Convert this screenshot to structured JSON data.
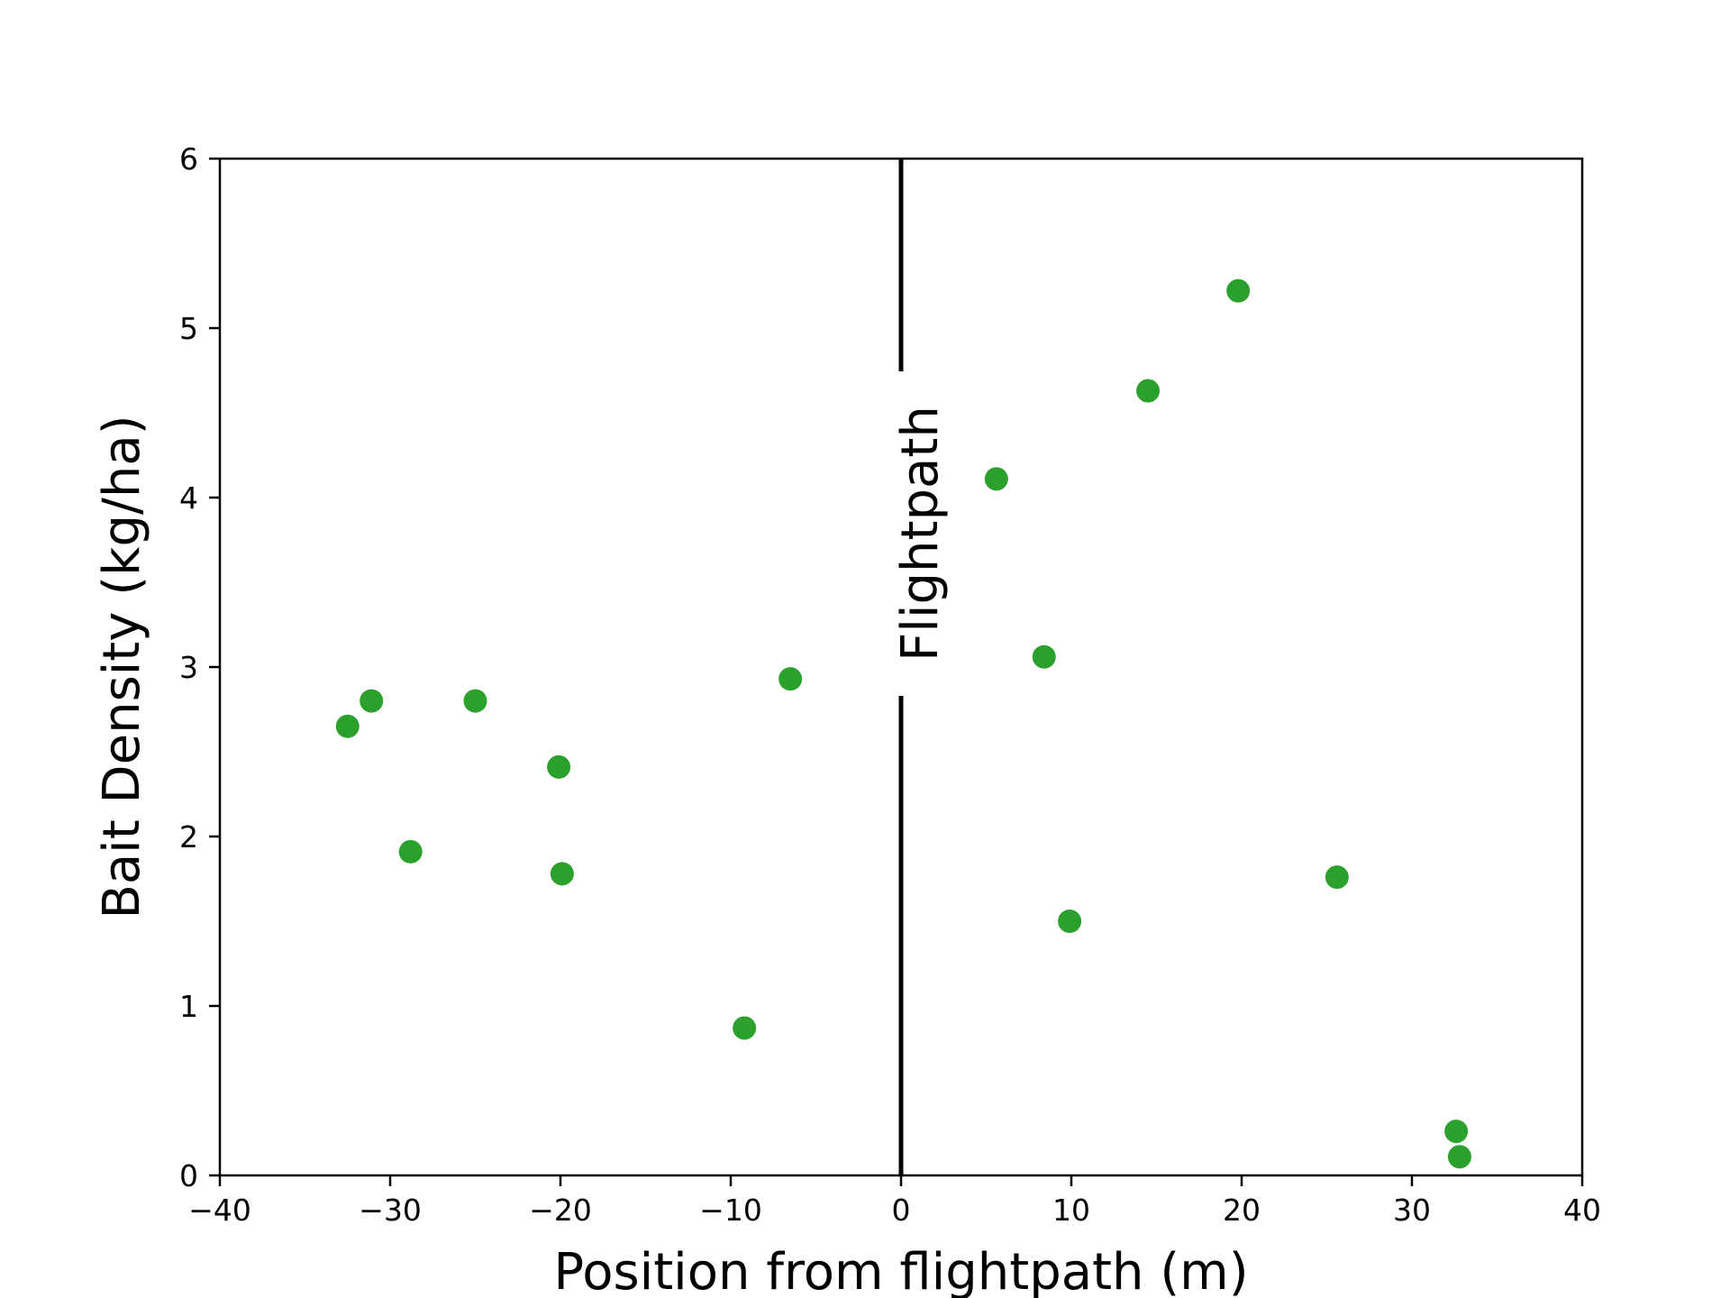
{
  "chart_data": {
    "type": "scatter",
    "title": "",
    "xlabel": "Position from flightpath (m)",
    "ylabel": "Bait Density (kg/ha)",
    "xlim": [
      -40,
      40
    ],
    "ylim": [
      0,
      6
    ],
    "xticks": [
      -40,
      -30,
      -20,
      -10,
      0,
      10,
      20,
      30,
      40
    ],
    "xtick_labels": [
      "−40",
      "−30",
      "−20",
      "−10",
      "0",
      "10",
      "20",
      "30",
      "40"
    ],
    "yticks": [
      0,
      1,
      2,
      3,
      4,
      5,
      6
    ],
    "ytick_labels": [
      "0",
      "1",
      "2",
      "3",
      "4",
      "5",
      "6"
    ],
    "grid": false,
    "marker_color": "#2ca02c",
    "reference_line": {
      "x": 0,
      "label": "Flightpath",
      "color": "#000000"
    },
    "points": [
      {
        "x": -32.5,
        "y": 2.65
      },
      {
        "x": -31.1,
        "y": 2.8
      },
      {
        "x": -28.8,
        "y": 1.91
      },
      {
        "x": -25.0,
        "y": 2.8
      },
      {
        "x": -20.1,
        "y": 2.41
      },
      {
        "x": -19.9,
        "y": 1.78
      },
      {
        "x": -9.2,
        "y": 0.87
      },
      {
        "x": -6.5,
        "y": 2.93
      },
      {
        "x": 5.6,
        "y": 4.11
      },
      {
        "x": 8.4,
        "y": 3.06
      },
      {
        "x": 9.9,
        "y": 1.5
      },
      {
        "x": 14.5,
        "y": 4.63
      },
      {
        "x": 19.8,
        "y": 5.22
      },
      {
        "x": 25.6,
        "y": 1.76
      },
      {
        "x": 32.6,
        "y": 0.26
      },
      {
        "x": 32.8,
        "y": 0.11
      }
    ]
  }
}
